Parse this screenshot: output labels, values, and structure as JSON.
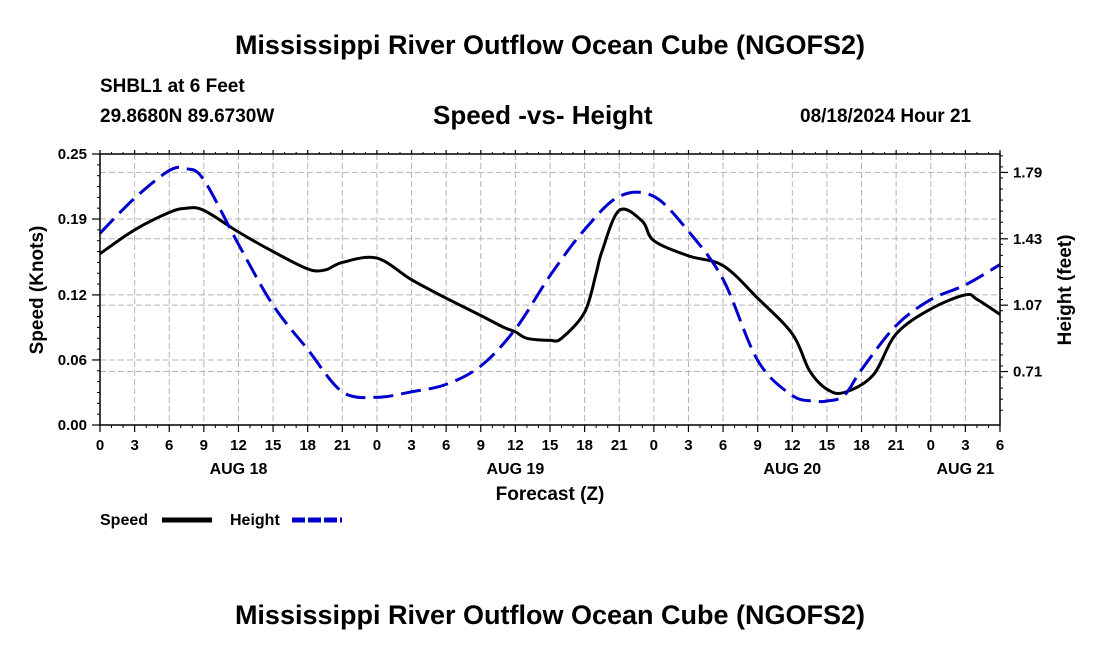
{
  "header": {
    "title": "Mississippi River Outflow Ocean Cube (NGOFS2)",
    "station": "SHBL1 at 6 Feet",
    "coordinates": "29.8680N  89.6730W",
    "subtitle": "Speed -vs- Height",
    "datetime": "08/18/2024 Hour 21"
  },
  "footer": {
    "title": "Mississippi River Outflow Ocean Cube (NGOFS2)"
  },
  "colors": {
    "speed": "#000000",
    "height": "#0000cc",
    "grid": "#b4b4b4"
  },
  "chart_data": {
    "type": "line",
    "title": "Speed -vs- Height",
    "xlabel": "Forecast (Z)",
    "ylabel_left": "Speed (Knots)",
    "ylabel_right": "Height (feet)",
    "x_unit": "hours from AUG 18 00Z",
    "xlim": [
      0,
      78
    ],
    "ylim_left": [
      0.0,
      0.25
    ],
    "ylim_right": [
      0.42,
      1.89
    ],
    "x_ticks": [
      0,
      3,
      6,
      9,
      12,
      15,
      18,
      21,
      24,
      27,
      30,
      33,
      36,
      39,
      42,
      45,
      48,
      51,
      54,
      57,
      60,
      63,
      66,
      69,
      72,
      75,
      78
    ],
    "x_tick_labels": [
      "0",
      "3",
      "6",
      "9",
      "12",
      "15",
      "18",
      "21",
      "0",
      "3",
      "6",
      "9",
      "12",
      "15",
      "18",
      "21",
      "0",
      "3",
      "6",
      "9",
      "12",
      "15",
      "18",
      "21",
      "0",
      "3",
      "6"
    ],
    "y_left_ticks": [
      0.0,
      0.06,
      0.12,
      0.19,
      0.25
    ],
    "y_left_tick_labels": [
      "0.00",
      "0.06",
      "0.12",
      "0.19",
      "0.25"
    ],
    "y_right_ticks": [
      0.71,
      1.07,
      1.43,
      1.79
    ],
    "y_right_tick_labels": [
      "0.71",
      "1.07",
      "1.43",
      "1.79"
    ],
    "date_labels": [
      {
        "x": 12,
        "label": "AUG 18"
      },
      {
        "x": 36,
        "label": "AUG 19"
      },
      {
        "x": 60,
        "label": "AUG 20"
      },
      {
        "x": 75,
        "label": "AUG 21"
      }
    ],
    "legend": {
      "position": "bottom-left",
      "entries": [
        "Speed",
        "Height"
      ]
    },
    "series": [
      {
        "name": "Speed",
        "axis": "left",
        "style": "solid",
        "x": [
          0,
          3,
          6,
          7.5,
          9,
          12,
          15,
          18,
          19.5,
          21,
          24,
          27,
          30,
          33,
          35,
          36,
          37,
          39,
          40,
          42,
          43,
          43.5,
          45,
          47,
          48,
          51,
          54,
          57,
          60,
          61.5,
          63,
          64.5,
          67,
          69,
          72,
          75,
          76,
          78
        ],
        "values": [
          0.158,
          0.18,
          0.196,
          0.2,
          0.198,
          0.178,
          0.16,
          0.144,
          0.143,
          0.15,
          0.154,
          0.134,
          0.117,
          0.101,
          0.09,
          0.086,
          0.08,
          0.078,
          0.08,
          0.104,
          0.14,
          0.16,
          0.198,
          0.188,
          0.17,
          0.156,
          0.147,
          0.117,
          0.084,
          0.05,
          0.033,
          0.03,
          0.046,
          0.084,
          0.107,
          0.12,
          0.116,
          0.102
        ]
      },
      {
        "name": "Height",
        "axis": "right",
        "style": "dashed",
        "x": [
          0,
          3,
          6,
          7.5,
          9,
          12,
          15,
          18,
          21,
          24,
          27,
          30,
          33,
          36,
          39,
          42,
          45,
          48,
          51,
          54,
          57,
          60,
          62,
          63,
          64.5,
          66,
          69,
          72,
          75,
          78
        ],
        "values": [
          1.46,
          1.65,
          1.8,
          1.81,
          1.75,
          1.4,
          1.07,
          0.83,
          0.6,
          0.57,
          0.6,
          0.64,
          0.74,
          0.94,
          1.23,
          1.48,
          1.66,
          1.66,
          1.47,
          1.21,
          0.77,
          0.58,
          0.55,
          0.55,
          0.58,
          0.72,
          0.96,
          1.1,
          1.18,
          1.29
        ]
      }
    ]
  }
}
